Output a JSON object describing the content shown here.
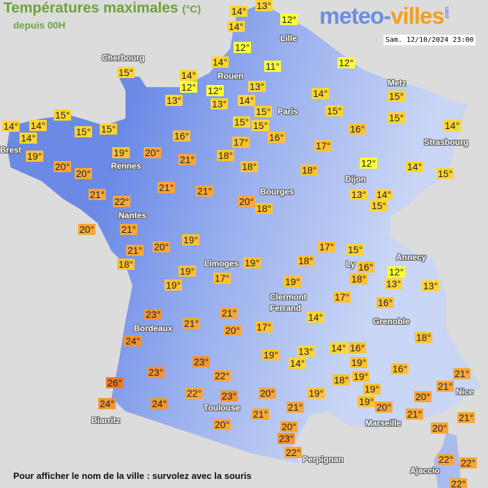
{
  "header": {
    "title": "Températures maximales",
    "unit": "(°C)",
    "subtitle": "depuis 00H",
    "logo_left": "meteo-",
    "logo_right": "villes",
    "logo_com": ".com",
    "datetime": "Sam. 12/10/2024 23:00"
  },
  "footer": "Pour afficher le nom de la ville : survolez avec la souris",
  "colors": {
    "land_west": "#6a8ae6",
    "land_east": "#c4d2f4",
    "sea": "#dddcdc",
    "temp_11_12": "#ffff3a",
    "temp_13_15": "#ffd535",
    "temp_16_19": "#ffc232",
    "temp_20_22": "#f8a73a",
    "temp_23_25": "#f49530",
    "temp_26": "#ec7a2c"
  },
  "cities": [
    "Cherbourg",
    "Rouen",
    "Lille",
    "Paris",
    "Metz",
    "Strasbourg",
    "Brest",
    "Rennes",
    "Dijon",
    "Bourges",
    "Nantes",
    "Limoges",
    "Annecy",
    "Ly",
    "Clermont",
    "Ferrand",
    "Grenoble",
    "Bordeaux",
    "Nice",
    "Toulouse",
    "Biarritz",
    "Marseille",
    "Perpignan",
    "Ajaccio"
  ],
  "temperatures": [
    "14°",
    "14°",
    "13°",
    "12°",
    "12°",
    "14°",
    "14°",
    "12°",
    "12°",
    "13°",
    "13°",
    "11°",
    "13°",
    "14°",
    "15°",
    "14°",
    "15°",
    "12°",
    "15°",
    "15°",
    "14°",
    "15°",
    "14°",
    "12°",
    "13°",
    "14°",
    "15°",
    "16°",
    "17°",
    "18°",
    "15°",
    "15°",
    "16°",
    "17°",
    "18°",
    "18°",
    "21°",
    "16°",
    "20°",
    "19°",
    "14°",
    "14°",
    "14°",
    "15°",
    "15°",
    "15°",
    "15°",
    "19°",
    "20°",
    "20°",
    "21°",
    "22°",
    "21°",
    "21°",
    "20°",
    "18°",
    "20°",
    "21°",
    "21°",
    "20°",
    "19°",
    "18°",
    "19°",
    "19°",
    "17°",
    "19°",
    "17°",
    "15°",
    "18°",
    "16°",
    "18°",
    "19°",
    "12°",
    "13°",
    "13°",
    "17°",
    "16°",
    "14°",
    "17°",
    "21°",
    "20°",
    "23°",
    "21°",
    "24°",
    "19°",
    "13°",
    "14°",
    "14°",
    "16°",
    "19°",
    "19°",
    "18°",
    "16°",
    "18°",
    "23°",
    "26°",
    "23°",
    "22°",
    "22°",
    "23°",
    "20°",
    "19°",
    "21°",
    "21°",
    "20°",
    "20°",
    "23°",
    "22°",
    "19°",
    "19°",
    "20°",
    "21°",
    "20°",
    "20°",
    "21°",
    "21°",
    "21°",
    "22°",
    "22°",
    "22°",
    "24°",
    "24°"
  ]
}
